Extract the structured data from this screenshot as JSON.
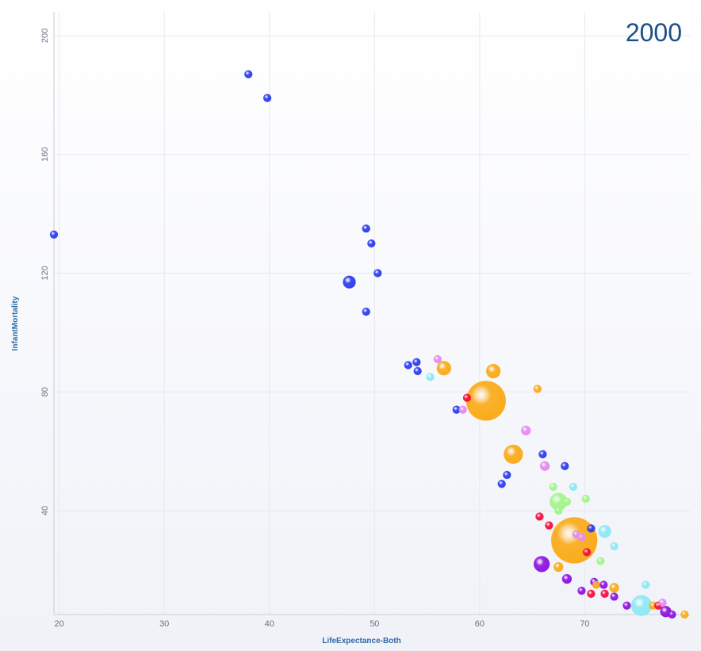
{
  "chart_data": {
    "type": "scatter",
    "title": "2000",
    "xlabel": "LifeExpectance-Both",
    "ylabel": "InfantMortality",
    "xlim": [
      19.5,
      80
    ],
    "ylim": [
      5,
      208
    ],
    "xticks": [
      20,
      30,
      40,
      50,
      60,
      70
    ],
    "yticks": [
      40,
      80,
      120,
      160,
      200
    ],
    "grid": true,
    "legend": "none",
    "colors": {
      "blue": "#2f3ff0",
      "orange": "#fbab1b",
      "red": "#f5113f",
      "pink": "#e58cf1",
      "cyan": "#8ee9f3",
      "green": "#a4f58b",
      "purple": "#8f17df"
    },
    "points": [
      {
        "x": 19.5,
        "y": 133,
        "size": 5,
        "color": "blue"
      },
      {
        "x": 38.0,
        "y": 187,
        "size": 5,
        "color": "blue"
      },
      {
        "x": 39.8,
        "y": 179,
        "size": 5,
        "color": "blue"
      },
      {
        "x": 49.2,
        "y": 135,
        "size": 5,
        "color": "blue"
      },
      {
        "x": 49.7,
        "y": 130,
        "size": 5,
        "color": "blue"
      },
      {
        "x": 50.3,
        "y": 120,
        "size": 5,
        "color": "blue"
      },
      {
        "x": 47.6,
        "y": 117,
        "size": 8,
        "color": "blue"
      },
      {
        "x": 49.2,
        "y": 107,
        "size": 5,
        "color": "blue"
      },
      {
        "x": 53.2,
        "y": 89,
        "size": 5,
        "color": "blue"
      },
      {
        "x": 54.0,
        "y": 90,
        "size": 5,
        "color": "blue"
      },
      {
        "x": 54.1,
        "y": 87,
        "size": 5,
        "color": "blue"
      },
      {
        "x": 55.3,
        "y": 85,
        "size": 5,
        "color": "cyan"
      },
      {
        "x": 56.0,
        "y": 91,
        "size": 5,
        "color": "pink"
      },
      {
        "x": 56.6,
        "y": 88,
        "size": 9,
        "color": "orange"
      },
      {
        "x": 61.3,
        "y": 87,
        "size": 9,
        "color": "orange"
      },
      {
        "x": 65.5,
        "y": 81,
        "size": 5,
        "color": "orange"
      },
      {
        "x": 58.8,
        "y": 78,
        "size": 5,
        "color": "red"
      },
      {
        "x": 60.6,
        "y": 77,
        "size": 25,
        "color": "orange"
      },
      {
        "x": 57.8,
        "y": 74,
        "size": 5,
        "color": "blue"
      },
      {
        "x": 58.4,
        "y": 74,
        "size": 5,
        "color": "pink"
      },
      {
        "x": 64.4,
        "y": 67,
        "size": 6,
        "color": "pink"
      },
      {
        "x": 63.2,
        "y": 59,
        "size": 12,
        "color": "orange"
      },
      {
        "x": 66.0,
        "y": 59,
        "size": 5,
        "color": "blue"
      },
      {
        "x": 66.2,
        "y": 55,
        "size": 6,
        "color": "pink"
      },
      {
        "x": 68.1,
        "y": 55,
        "size": 5,
        "color": "blue"
      },
      {
        "x": 62.6,
        "y": 52,
        "size": 5,
        "color": "blue"
      },
      {
        "x": 62.1,
        "y": 49,
        "size": 5,
        "color": "blue"
      },
      {
        "x": 67.0,
        "y": 48,
        "size": 5,
        "color": "green"
      },
      {
        "x": 68.9,
        "y": 48,
        "size": 5,
        "color": "cyan"
      },
      {
        "x": 70.1,
        "y": 44,
        "size": 5,
        "color": "green"
      },
      {
        "x": 67.5,
        "y": 43,
        "size": 11,
        "color": "green"
      },
      {
        "x": 68.3,
        "y": 43,
        "size": 5,
        "color": "green"
      },
      {
        "x": 67.5,
        "y": 40,
        "size": 5,
        "color": "green"
      },
      {
        "x": 65.7,
        "y": 38,
        "size": 5,
        "color": "red"
      },
      {
        "x": 66.6,
        "y": 35,
        "size": 5,
        "color": "red"
      },
      {
        "x": 70.6,
        "y": 34,
        "size": 5,
        "color": "blue"
      },
      {
        "x": 71.9,
        "y": 33,
        "size": 8,
        "color": "cyan"
      },
      {
        "x": 69.2,
        "y": 32,
        "size": 5,
        "color": "pink"
      },
      {
        "x": 69.7,
        "y": 31,
        "size": 5,
        "color": "pink"
      },
      {
        "x": 69.0,
        "y": 30,
        "size": 29,
        "color": "orange"
      },
      {
        "x": 72.8,
        "y": 28,
        "size": 5,
        "color": "cyan"
      },
      {
        "x": 70.2,
        "y": 26,
        "size": 5,
        "color": "red"
      },
      {
        "x": 71.5,
        "y": 23,
        "size": 5,
        "color": "green"
      },
      {
        "x": 65.9,
        "y": 22,
        "size": 10,
        "color": "purple"
      },
      {
        "x": 67.5,
        "y": 21,
        "size": 6,
        "color": "orange"
      },
      {
        "x": 68.3,
        "y": 17,
        "size": 6,
        "color": "purple"
      },
      {
        "x": 70.9,
        "y": 16,
        "size": 5,
        "color": "purple"
      },
      {
        "x": 71.1,
        "y": 15,
        "size": 5,
        "color": "orange"
      },
      {
        "x": 71.8,
        "y": 15,
        "size": 5,
        "color": "purple"
      },
      {
        "x": 72.8,
        "y": 14,
        "size": 6,
        "color": "orange"
      },
      {
        "x": 69.7,
        "y": 13,
        "size": 5,
        "color": "purple"
      },
      {
        "x": 70.6,
        "y": 12,
        "size": 5,
        "color": "red"
      },
      {
        "x": 71.9,
        "y": 12,
        "size": 5,
        "color": "red"
      },
      {
        "x": 72.8,
        "y": 11,
        "size": 5,
        "color": "purple"
      },
      {
        "x": 75.8,
        "y": 15,
        "size": 5,
        "color": "cyan"
      },
      {
        "x": 75.4,
        "y": 8,
        "size": 13,
        "color": "cyan"
      },
      {
        "x": 74.0,
        "y": 8,
        "size": 5,
        "color": "purple"
      },
      {
        "x": 76.5,
        "y": 8,
        "size": 5,
        "color": "orange"
      },
      {
        "x": 77.0,
        "y": 8,
        "size": 5,
        "color": "red"
      },
      {
        "x": 77.4,
        "y": 9,
        "size": 5,
        "color": "pink"
      },
      {
        "x": 77.7,
        "y": 6,
        "size": 7,
        "color": "purple"
      },
      {
        "x": 78.3,
        "y": 5,
        "size": 5,
        "color": "purple"
      },
      {
        "x": 79.5,
        "y": 5,
        "size": 5,
        "color": "orange"
      }
    ]
  }
}
